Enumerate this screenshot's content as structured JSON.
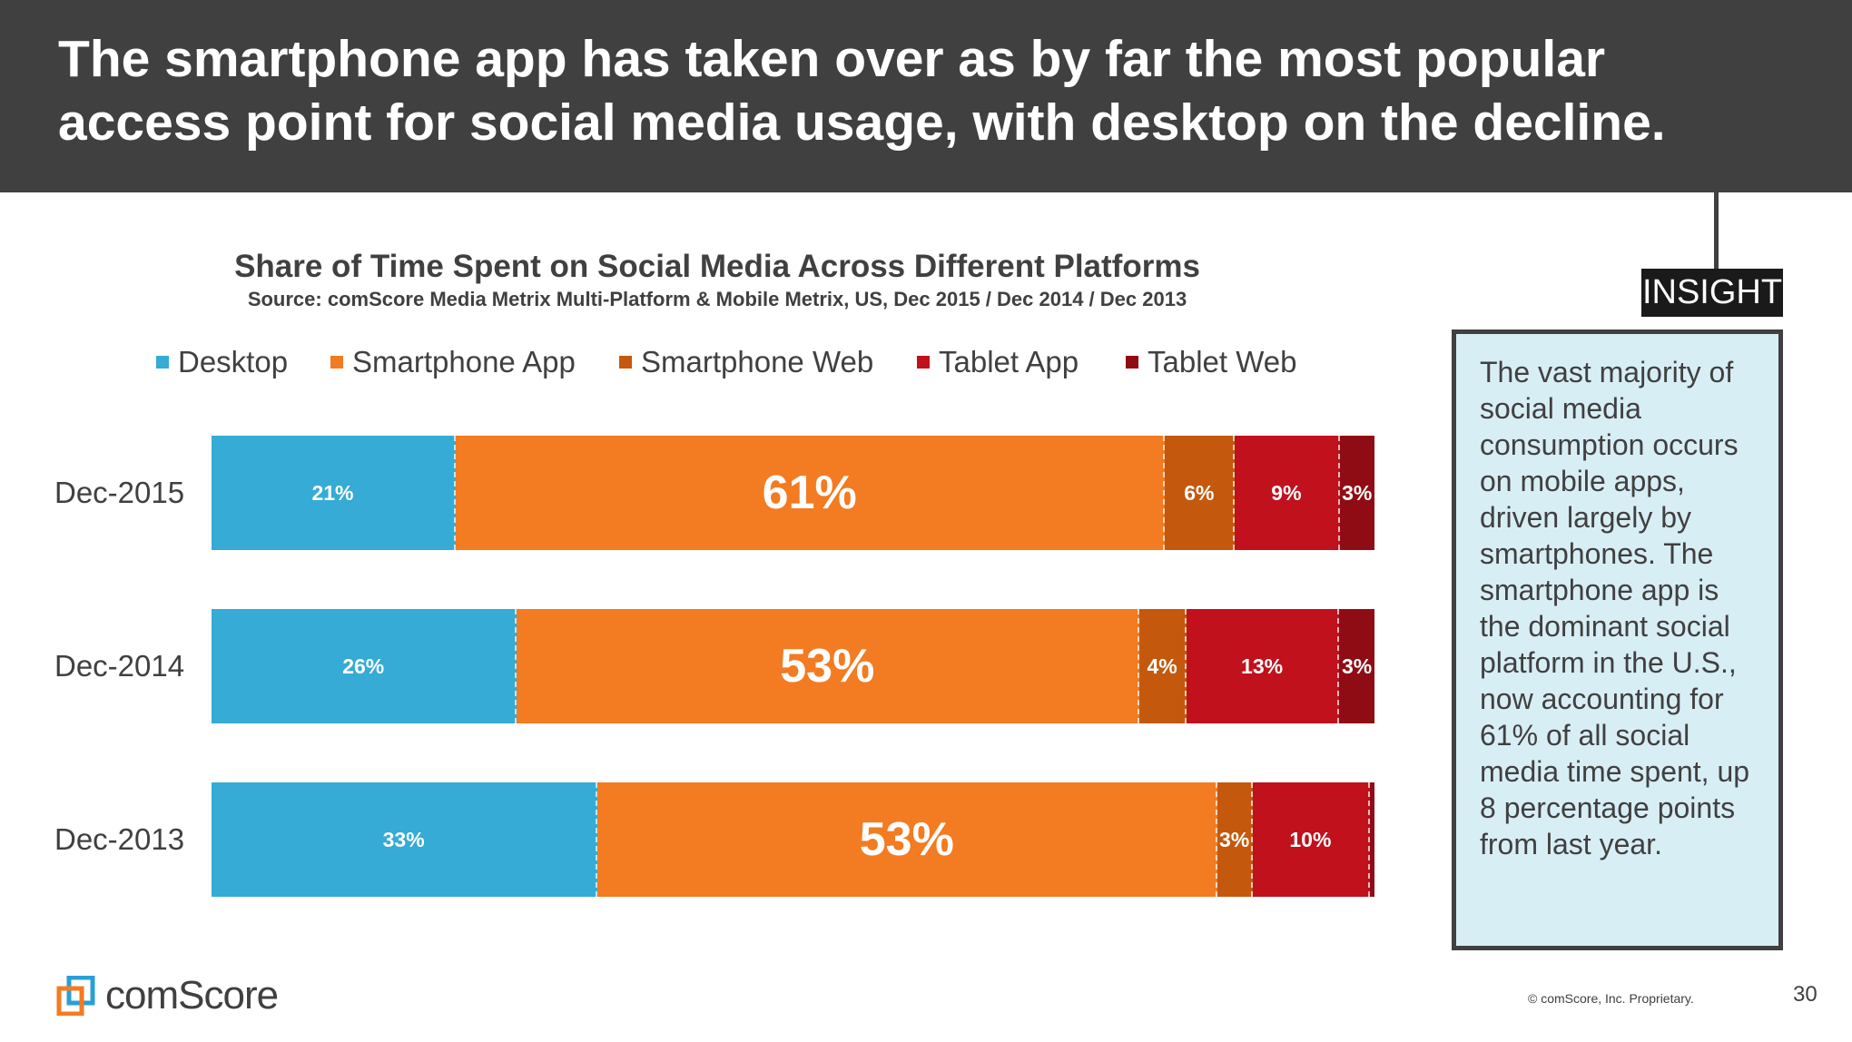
{
  "header": {
    "title": "The smartphone app has taken over as by far the most popular access point for social media usage, with desktop on the decline."
  },
  "chart_data": {
    "type": "bar",
    "orientation": "horizontal-stacked-100",
    "title": "Share of Time Spent on Social Media Across Different Platforms",
    "subtitle": "Source: comScore Media Metrix Multi-Platform & Mobile Metrix, US, Dec 2015 / Dec 2014 / Dec 2013",
    "legend_position": "top",
    "categories": [
      "Dec-2015",
      "Dec-2014",
      "Dec-2013"
    ],
    "series": [
      {
        "name": "Desktop",
        "color": "#35abd6",
        "values": [
          21,
          26,
          33
        ],
        "labels": [
          "21%",
          "26%",
          "33%"
        ]
      },
      {
        "name": "Smartphone App",
        "color": "#f37b21",
        "values": [
          61,
          53,
          53
        ],
        "labels": [
          "61%",
          "53%",
          "53%"
        ]
      },
      {
        "name": "Smartphone Web",
        "color": "#c4590e",
        "values": [
          6,
          4,
          3
        ],
        "labels": [
          "6%",
          "4%",
          "3%"
        ]
      },
      {
        "name": "Tablet App",
        "color": "#c0111c",
        "values": [
          9,
          13,
          10
        ],
        "labels": [
          "9%",
          "13%",
          "10%"
        ]
      },
      {
        "name": "Tablet Web",
        "color": "#900c14",
        "values": [
          3,
          3,
          0.4
        ],
        "labels": [
          "3%",
          "3%",
          ""
        ]
      }
    ]
  },
  "insight": {
    "tag": "INSIGHT",
    "text": "The vast majority of social media consumption occurs on mobile apps, driven largely by smartphones. The smartphone app is the dominant social platform in the U.S., now accounting for 61% of all social media time spent, up 8 percentage points from last year."
  },
  "footer": {
    "logo": "comScore",
    "copyright": "© comScore, Inc. Proprietary.",
    "page": "30"
  }
}
